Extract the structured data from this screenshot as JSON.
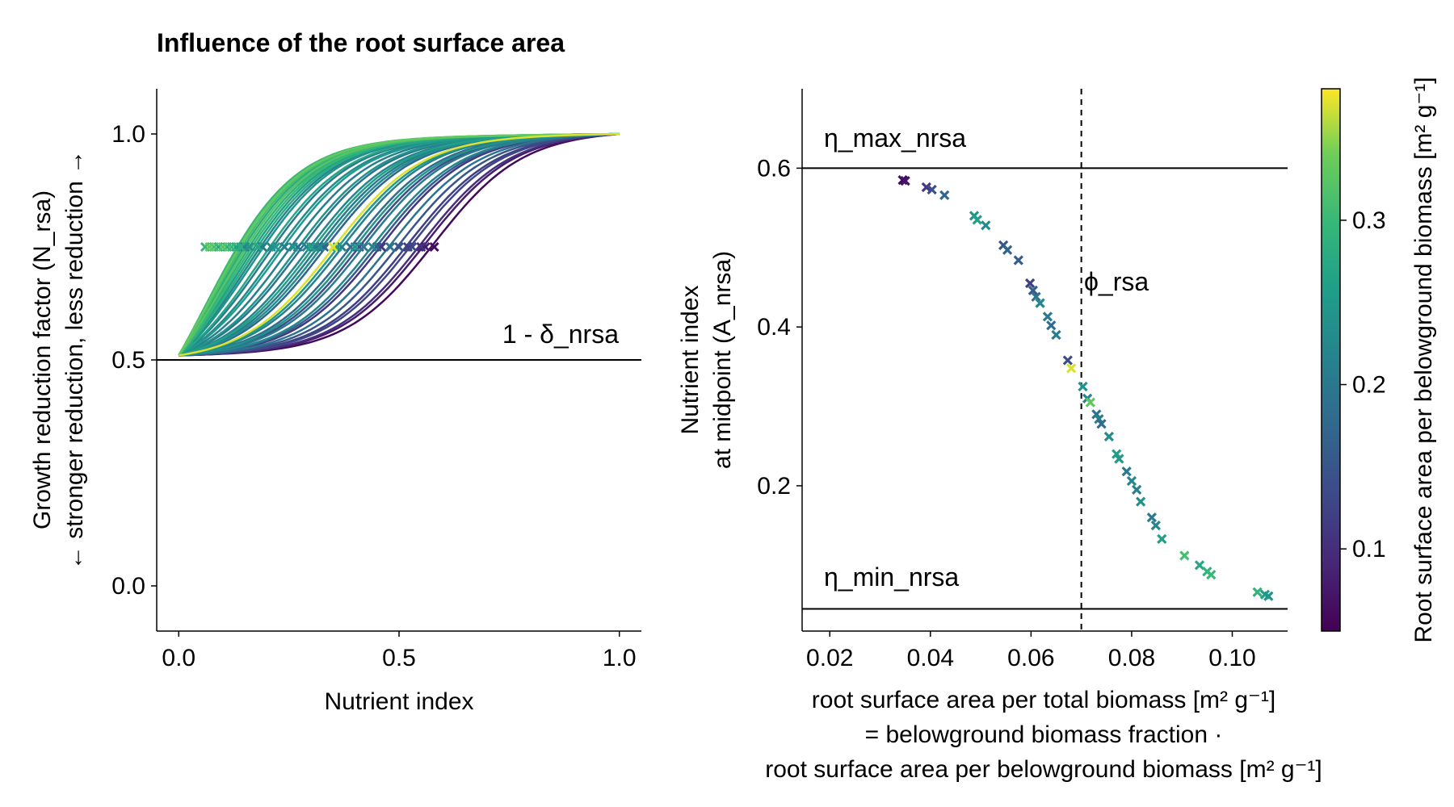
{
  "chart_data": [
    {
      "type": "line",
      "title": "Influence of the root surface area",
      "xlabel": "Nutrient index",
      "ylabel_lines": [
        "Growth reduction factor (N_rsa)",
        "← stronger reduction, less reduction →"
      ],
      "xlim": [
        -0.05,
        1.05
      ],
      "ylim": [
        -0.1,
        1.1
      ],
      "xticks": [
        "0.0",
        "0.5",
        "1.0"
      ],
      "xtick_values": [
        0.0,
        0.5,
        1.0
      ],
      "yticks": [
        "0.0",
        "0.5",
        "1.0"
      ],
      "ytick_values": [
        0.0,
        0.5,
        1.0
      ],
      "hline": {
        "y": 0.5,
        "label": "1 - δ_nrsa"
      },
      "series_description": "one logistic curve per sampled root surface area value, colored by root surface area per belowground biomass; x marker at each curve's midpoint (y=0.75)",
      "curves": [
        {
          "midpoint": 0.58,
          "c": 0.06
        },
        {
          "midpoint": 0.56,
          "c": 0.08
        },
        {
          "midpoint": 0.55,
          "c": 0.1
        },
        {
          "midpoint": 0.53,
          "c": 0.13
        },
        {
          "midpoint": 0.52,
          "c": 0.12
        },
        {
          "midpoint": 0.5,
          "c": 0.15
        },
        {
          "midpoint": 0.48,
          "c": 0.19
        },
        {
          "midpoint": 0.46,
          "c": 0.11
        },
        {
          "midpoint": 0.45,
          "c": 0.16
        },
        {
          "midpoint": 0.44,
          "c": 0.22
        },
        {
          "midpoint": 0.42,
          "c": 0.2
        },
        {
          "midpoint": 0.41,
          "c": 0.14
        },
        {
          "midpoint": 0.4,
          "c": 0.24
        },
        {
          "midpoint": 0.39,
          "c": 0.18
        },
        {
          "midpoint": 0.37,
          "c": 0.21
        },
        {
          "midpoint": 0.36,
          "c": 0.25
        },
        {
          "midpoint": 0.35,
          "c": 0.37
        },
        {
          "midpoint": 0.33,
          "c": 0.17
        },
        {
          "midpoint": 0.32,
          "c": 0.23
        },
        {
          "midpoint": 0.31,
          "c": 0.2
        },
        {
          "midpoint": 0.3,
          "c": 0.26
        },
        {
          "midpoint": 0.29,
          "c": 0.22
        },
        {
          "midpoint": 0.27,
          "c": 0.19
        },
        {
          "midpoint": 0.26,
          "c": 0.24
        },
        {
          "midpoint": 0.24,
          "c": 0.21
        },
        {
          "midpoint": 0.22,
          "c": 0.25
        },
        {
          "midpoint": 0.21,
          "c": 0.23
        },
        {
          "midpoint": 0.19,
          "c": 0.2
        },
        {
          "midpoint": 0.18,
          "c": 0.27
        },
        {
          "midpoint": 0.16,
          "c": 0.24
        },
        {
          "midpoint": 0.15,
          "c": 0.22
        },
        {
          "midpoint": 0.14,
          "c": 0.28
        },
        {
          "midpoint": 0.13,
          "c": 0.26
        },
        {
          "midpoint": 0.12,
          "c": 0.3
        },
        {
          "midpoint": 0.11,
          "c": 0.29
        },
        {
          "midpoint": 0.1,
          "c": 0.32
        },
        {
          "midpoint": 0.09,
          "c": 0.28
        },
        {
          "midpoint": 0.08,
          "c": 0.31
        },
        {
          "midpoint": 0.07,
          "c": 0.33
        },
        {
          "midpoint": 0.06,
          "c": 0.3
        }
      ]
    },
    {
      "type": "scatter",
      "xlabel_lines": [
        "root surface area per total biomass [m² g⁻¹]",
        "= belowground biomass fraction ·",
        "root surface area per belowground biomass [m² g⁻¹]"
      ],
      "ylabel_lines": [
        "Nutrient index",
        "at midpoint (A_nrsa)"
      ],
      "xlim": [
        0.0145,
        0.111
      ],
      "ylim": [
        0.017,
        0.7
      ],
      "xticks": [
        "0.02",
        "0.04",
        "0.06",
        "0.08",
        "0.10"
      ],
      "xtick_values": [
        0.02,
        0.04,
        0.06,
        0.08,
        0.1
      ],
      "yticks": [
        "0.2",
        "0.4",
        "0.6"
      ],
      "ytick_values": [
        0.2,
        0.4,
        0.6
      ],
      "hlines": [
        {
          "y": 0.6,
          "label": "η_max_nrsa"
        },
        {
          "y": 0.045,
          "label": "η_min_nrsa"
        }
      ],
      "vline": {
        "x": 0.07,
        "label": "ϕ_rsa",
        "style": "dashed"
      },
      "points": [
        {
          "x": 0.0345,
          "y": 0.585,
          "c": 0.06
        },
        {
          "x": 0.035,
          "y": 0.584,
          "c": 0.07
        },
        {
          "x": 0.0392,
          "y": 0.576,
          "c": 0.11
        },
        {
          "x": 0.0403,
          "y": 0.573,
          "c": 0.14
        },
        {
          "x": 0.0428,
          "y": 0.566,
          "c": 0.17
        },
        {
          "x": 0.0487,
          "y": 0.54,
          "c": 0.24
        },
        {
          "x": 0.0493,
          "y": 0.535,
          "c": 0.26
        },
        {
          "x": 0.051,
          "y": 0.528,
          "c": 0.23
        },
        {
          "x": 0.0545,
          "y": 0.503,
          "c": 0.15
        },
        {
          "x": 0.0553,
          "y": 0.497,
          "c": 0.17
        },
        {
          "x": 0.0575,
          "y": 0.484,
          "c": 0.16
        },
        {
          "x": 0.0598,
          "y": 0.455,
          "c": 0.12
        },
        {
          "x": 0.0604,
          "y": 0.446,
          "c": 0.16
        },
        {
          "x": 0.061,
          "y": 0.438,
          "c": 0.19
        },
        {
          "x": 0.0618,
          "y": 0.43,
          "c": 0.22
        },
        {
          "x": 0.0633,
          "y": 0.413,
          "c": 0.2
        },
        {
          "x": 0.064,
          "y": 0.402,
          "c": 0.18
        },
        {
          "x": 0.065,
          "y": 0.39,
          "c": 0.21
        },
        {
          "x": 0.0673,
          "y": 0.358,
          "c": 0.14
        },
        {
          "x": 0.068,
          "y": 0.348,
          "c": 0.37
        },
        {
          "x": 0.0703,
          "y": 0.325,
          "c": 0.24
        },
        {
          "x": 0.0712,
          "y": 0.31,
          "c": 0.22
        },
        {
          "x": 0.0718,
          "y": 0.305,
          "c": 0.33
        },
        {
          "x": 0.073,
          "y": 0.29,
          "c": 0.19
        },
        {
          "x": 0.0735,
          "y": 0.284,
          "c": 0.21
        },
        {
          "x": 0.074,
          "y": 0.278,
          "c": 0.18
        },
        {
          "x": 0.0755,
          "y": 0.262,
          "c": 0.23
        },
        {
          "x": 0.077,
          "y": 0.24,
          "c": 0.26
        },
        {
          "x": 0.0775,
          "y": 0.234,
          "c": 0.25
        },
        {
          "x": 0.079,
          "y": 0.218,
          "c": 0.2
        },
        {
          "x": 0.08,
          "y": 0.206,
          "c": 0.22
        },
        {
          "x": 0.081,
          "y": 0.195,
          "c": 0.21
        },
        {
          "x": 0.0818,
          "y": 0.18,
          "c": 0.24
        },
        {
          "x": 0.084,
          "y": 0.16,
          "c": 0.2
        },
        {
          "x": 0.0848,
          "y": 0.15,
          "c": 0.22
        },
        {
          "x": 0.086,
          "y": 0.133,
          "c": 0.26
        },
        {
          "x": 0.0905,
          "y": 0.112,
          "c": 0.31
        },
        {
          "x": 0.0935,
          "y": 0.1,
          "c": 0.27
        },
        {
          "x": 0.095,
          "y": 0.092,
          "c": 0.29
        },
        {
          "x": 0.0958,
          "y": 0.088,
          "c": 0.3
        },
        {
          "x": 0.105,
          "y": 0.066,
          "c": 0.29
        },
        {
          "x": 0.1065,
          "y": 0.063,
          "c": 0.26
        },
        {
          "x": 0.1072,
          "y": 0.061,
          "c": 0.24
        }
      ]
    }
  ],
  "colorbar": {
    "label": "Root surface area per belowground biomass [m² g⁻¹]",
    "range": [
      0.05,
      0.38
    ],
    "ticks": [
      "0.1",
      "0.2",
      "0.3"
    ],
    "tick_values": [
      0.1,
      0.2,
      0.3
    ],
    "colormap": "viridis"
  }
}
